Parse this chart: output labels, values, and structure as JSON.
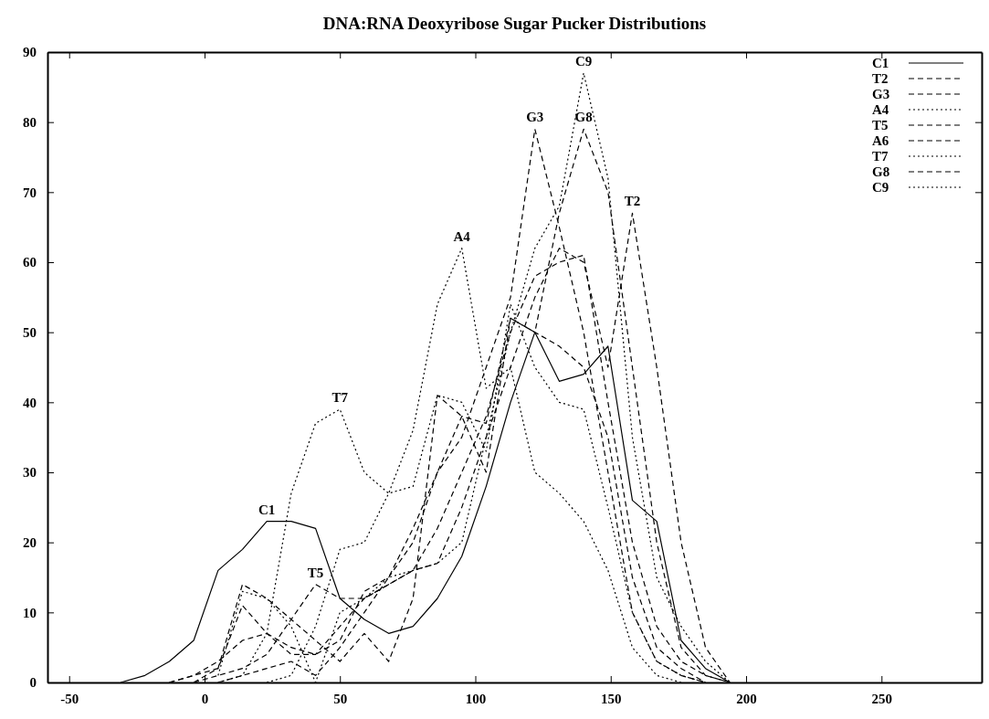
{
  "chart_data": {
    "type": "line",
    "title": "DNA:RNA Deoxyribose Sugar Pucker Distributions",
    "xlim": [
      -58,
      287
    ],
    "xticks": [
      -50,
      0,
      50,
      100,
      150,
      200,
      250
    ],
    "ylim": [
      0,
      90
    ],
    "yticks": [
      0,
      10,
      20,
      30,
      40,
      50,
      60,
      70,
      80,
      90
    ],
    "grid": false,
    "legend": "top right",
    "marker": "none",
    "series": [
      {
        "name": "C1",
        "color": "#000000",
        "line_style": "solid",
        "x": [
          -31,
          -22,
          -13,
          -4,
          5,
          14,
          23,
          32,
          41,
          50,
          59,
          68,
          77,
          86,
          95,
          104,
          113,
          122,
          131,
          140,
          149,
          158,
          167,
          176,
          185,
          194
        ],
        "values": [
          0,
          1,
          3,
          6,
          16,
          19,
          23,
          23,
          22,
          12,
          9,
          7,
          8,
          12,
          18,
          28,
          40,
          50,
          43,
          44,
          48,
          26,
          23,
          6,
          2,
          0
        ]
      },
      {
        "name": "T2",
        "color": "#000000",
        "line_style": "dashed",
        "x": [
          -13,
          -4,
          5,
          14,
          23,
          32,
          41,
          50,
          59,
          68,
          77,
          86,
          95,
          104,
          113,
          122,
          131,
          140,
          149,
          158,
          167,
          176,
          185,
          194
        ],
        "values": [
          0,
          1,
          3,
          6,
          7,
          4,
          4,
          8,
          12,
          14,
          16,
          17,
          25,
          35,
          45,
          55,
          62,
          60,
          45,
          67,
          45,
          20,
          5,
          0
        ]
      },
      {
        "name": "G3",
        "color": "#000000",
        "line_style": "dashed",
        "x": [
          5,
          14,
          23,
          32,
          41,
          50,
          59,
          68,
          77,
          86,
          95,
          104,
          113,
          122,
          131,
          140,
          149,
          158,
          167,
          176,
          185
        ],
        "values": [
          0,
          1,
          2,
          3,
          1,
          5,
          10,
          15,
          22,
          30,
          35,
          45,
          55,
          79,
          65,
          50,
          30,
          10,
          3,
          1,
          0
        ]
      },
      {
        "name": "A4",
        "color": "#000000",
        "line_style": "dotted",
        "x": [
          23,
          32,
          41,
          50,
          59,
          68,
          77,
          86,
          95,
          104,
          113,
          122,
          131,
          140,
          149,
          158,
          167,
          176
        ],
        "values": [
          0,
          1,
          8,
          19,
          20,
          27,
          36,
          54,
          62,
          42,
          45,
          30,
          27,
          23,
          16,
          5,
          1,
          0
        ]
      },
      {
        "name": "T5",
        "color": "#000000",
        "line_style": "dashed",
        "x": [
          -4,
          5,
          14,
          23,
          32,
          41,
          50,
          59,
          68,
          77,
          86,
          95,
          104,
          113,
          122,
          131,
          140,
          149,
          158,
          167,
          176,
          185,
          194
        ],
        "values": [
          0,
          1,
          2,
          4,
          9,
          14,
          12,
          12,
          14,
          16,
          22,
          30,
          38,
          50,
          58,
          60,
          61,
          40,
          20,
          8,
          3,
          1,
          0
        ]
      },
      {
        "name": "A6",
        "color": "#000000",
        "line_style": "dashed",
        "x": [
          -13,
          -4,
          5,
          14,
          23,
          32,
          41,
          50,
          59,
          68,
          77,
          86,
          95,
          104,
          113,
          122,
          131,
          140,
          149,
          158,
          167,
          176,
          185
        ],
        "values": [
          0,
          1,
          2,
          11,
          7,
          5,
          4,
          6,
          13,
          15,
          20,
          30,
          38,
          37,
          52,
          50,
          48,
          45,
          35,
          15,
          5,
          2,
          0
        ]
      },
      {
        "name": "T7",
        "color": "#000000",
        "line_style": "dotted",
        "x": [
          5,
          14,
          23,
          32,
          41,
          50,
          59,
          68,
          77,
          86,
          95,
          104,
          113,
          122,
          131,
          140,
          149,
          158,
          167,
          176,
          185
        ],
        "values": [
          0,
          1,
          7,
          27,
          37,
          39,
          30,
          27,
          28,
          41,
          40,
          33,
          54,
          45,
          40,
          39,
          25,
          10,
          3,
          1,
          0
        ]
      },
      {
        "name": "G8",
        "color": "#000000",
        "line_style": "dashed",
        "x": [
          -4,
          5,
          14,
          23,
          32,
          41,
          50,
          59,
          68,
          77,
          86,
          95,
          104,
          113,
          122,
          131,
          140,
          149,
          158,
          167,
          176,
          185,
          194
        ],
        "values": [
          0,
          2,
          14,
          12,
          9,
          6,
          3,
          7,
          3,
          12,
          41,
          38,
          30,
          52,
          50,
          67,
          79,
          70,
          45,
          20,
          5,
          1,
          0
        ]
      },
      {
        "name": "C9",
        "color": "#000000",
        "line_style": "dotted",
        "x": [
          5,
          14,
          23,
          32,
          41,
          50,
          59,
          68,
          77,
          86,
          95,
          104,
          113,
          122,
          131,
          140,
          149,
          158,
          167,
          176,
          185,
          194
        ],
        "values": [
          1,
          13,
          12,
          8,
          0,
          10,
          12,
          15,
          16,
          17,
          20,
          35,
          50,
          62,
          68,
          87,
          72,
          35,
          15,
          8,
          3,
          0
        ]
      }
    ],
    "annotations": [
      {
        "text": "C1",
        "x": 23,
        "y": 23
      },
      {
        "text": "T2",
        "x": 158,
        "y": 67
      },
      {
        "text": "G3",
        "x": 122,
        "y": 79
      },
      {
        "text": "A4",
        "x": 95,
        "y": 62
      },
      {
        "text": "T5",
        "x": 41,
        "y": 14
      },
      {
        "text": "T7",
        "x": 50,
        "y": 39
      },
      {
        "text": "G8",
        "x": 140,
        "y": 79
      },
      {
        "text": "C9",
        "x": 140,
        "y": 87
      }
    ]
  }
}
